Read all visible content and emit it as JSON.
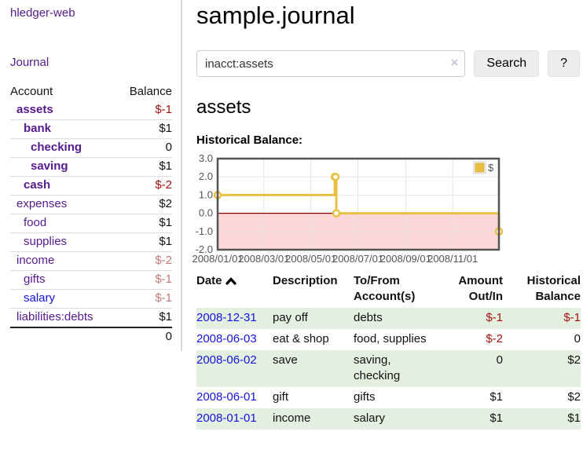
{
  "app": {
    "title": "hledger-web"
  },
  "sidebar": {
    "nav": {
      "journal_label": "Journal"
    },
    "accounts_table": {
      "headers": {
        "account": "Account",
        "balance": "Balance"
      },
      "rows": [
        {
          "name": "assets",
          "balance": "$-1",
          "level": 1,
          "bold": true,
          "link_color": "purple",
          "balance_tone": "neg-strong"
        },
        {
          "name": "bank",
          "balance": "$1",
          "level": 2,
          "bold": true,
          "link_color": "purple",
          "balance_tone": "pos"
        },
        {
          "name": "checking",
          "balance": "0",
          "level": 3,
          "bold": true,
          "link_color": "purple",
          "balance_tone": "pos"
        },
        {
          "name": "saving",
          "balance": "$1",
          "level": 3,
          "bold": true,
          "link_color": "purple",
          "balance_tone": "pos"
        },
        {
          "name": "cash",
          "balance": "$-2",
          "level": 2,
          "bold": true,
          "link_color": "purple",
          "balance_tone": "neg-strong"
        },
        {
          "name": "expenses",
          "balance": "$2",
          "level": 1,
          "bold": false,
          "link_color": "purple",
          "balance_tone": "pos"
        },
        {
          "name": "food",
          "balance": "$1",
          "level": 2,
          "bold": false,
          "link_color": "purple",
          "balance_tone": "pos"
        },
        {
          "name": "supplies",
          "balance": "$1",
          "level": 2,
          "bold": false,
          "link_color": "purple",
          "balance_tone": "pos"
        },
        {
          "name": "income",
          "balance": "$-2",
          "level": 1,
          "bold": false,
          "link_color": "purple",
          "balance_tone": "neg-faded"
        },
        {
          "name": "gifts",
          "balance": "$-1",
          "level": 2,
          "bold": false,
          "link_color": "purple",
          "balance_tone": "neg-faded"
        },
        {
          "name": "salary",
          "balance": "$-1",
          "level": 2,
          "bold": false,
          "link_color": "blue",
          "balance_tone": "neg-faded"
        },
        {
          "name": "liabilities:debts",
          "balance": "$1",
          "level": 1,
          "bold": false,
          "link_color": "purple",
          "balance_tone": "pos"
        }
      ],
      "total": "0"
    }
  },
  "main": {
    "title": "sample.journal",
    "search": {
      "value": "inacct:assets",
      "clear_icon": "×",
      "button_label": "Search",
      "help_button_label": "?"
    },
    "account_heading": "assets",
    "register_table": {
      "headers": [
        {
          "lines": [
            "Date"
          ],
          "sort": true,
          "align": "left"
        },
        {
          "lines": [
            "Description"
          ],
          "align": "left"
        },
        {
          "lines": [
            "To/From",
            "Account(s)"
          ],
          "align": "left"
        },
        {
          "lines": [
            "Amount",
            "Out/In"
          ],
          "align": "right"
        },
        {
          "lines": [
            "Historical",
            "Balance"
          ],
          "align": "right"
        }
      ],
      "rows": [
        {
          "date": "2008-12-31",
          "description": "pay off",
          "accounts": "debts",
          "amount": "$-1",
          "amount_tone": "neg-strong",
          "balance": "$-1",
          "balance_tone": "neg-strong"
        },
        {
          "date": "2008-06-03",
          "description": "eat & shop",
          "accounts": "food, supplies",
          "amount": "$-2",
          "amount_tone": "neg-strong",
          "balance": "0",
          "balance_tone": "pos"
        },
        {
          "date": "2008-06-02",
          "description": "save",
          "accounts": "saving, checking",
          "amount": "0",
          "amount_tone": "pos",
          "balance": "$2",
          "balance_tone": "pos"
        },
        {
          "date": "2008-06-01",
          "description": "gift",
          "accounts": "gifts",
          "amount": "$1",
          "amount_tone": "pos",
          "balance": "$2",
          "balance_tone": "pos"
        },
        {
          "date": "2008-01-01",
          "description": "income",
          "accounts": "salary",
          "amount": "$1",
          "amount_tone": "pos",
          "balance": "$1",
          "balance_tone": "pos"
        }
      ]
    }
  },
  "chart_data": {
    "type": "line",
    "step": true,
    "title": "Historical Balance:",
    "series": [
      {
        "name": "$",
        "points": [
          [
            "2008-01-01",
            1
          ],
          [
            "2008-06-01",
            2
          ],
          [
            "2008-06-02",
            2
          ],
          [
            "2008-06-03",
            0
          ],
          [
            "2008-12-31",
            -1
          ]
        ]
      }
    ],
    "xlim": [
      "2008-01-01",
      "2008-12-31"
    ],
    "ylim": [
      -2,
      3
    ],
    "x_ticks": [
      "2008/01/01",
      "2008/03/01",
      "2008/05/01",
      "2008/07/01",
      "2008/09/01",
      "2008/11/01"
    ],
    "y_ticks": [
      "3.0",
      "2.0",
      "1.0",
      "0.0",
      "-1.0",
      "-2.0"
    ],
    "legend_position": "top-right",
    "grid": true,
    "colors": {
      "line": "#e9c041",
      "marker_fill": "#ffffff",
      "negative_fill": "#fcd7d7",
      "zero_line": "#8b0000",
      "border": "#545454",
      "grid_line": "#e4e4e4",
      "tick_text": "#545454"
    }
  }
}
